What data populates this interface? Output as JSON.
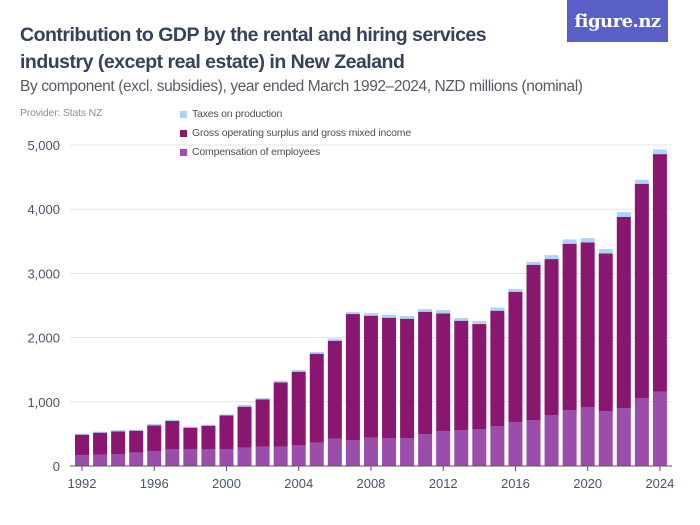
{
  "header": {
    "title": "Contribution to GDP by the rental and hiring services industry (except real estate) in New Zealand",
    "subtitle": "By component (excl. subsidies), year ended March 1992–2024, NZD millions (nominal)",
    "provider": "Provider: Stats NZ",
    "logo_text": "figure.nz",
    "logo_color": "#5a5fc8"
  },
  "chart_data": {
    "type": "bar",
    "stacked": true,
    "title": "Contribution to GDP by the rental and hiring services industry (except real estate) in New Zealand",
    "subtitle": "By component (excl. subsidies), year ended March 1992–2024, NZD millions (nominal)",
    "xlabel": "",
    "ylabel": "",
    "ylim": [
      0,
      5000
    ],
    "yticks": [
      "0",
      "1,000",
      "2,000",
      "3,000",
      "4,000",
      "5,000"
    ],
    "ytick_values": [
      0,
      1000,
      2000,
      3000,
      4000,
      5000
    ],
    "xticks": [
      "1992",
      "1996",
      "2000",
      "2004",
      "2008",
      "2012",
      "2016",
      "2020",
      "2024"
    ],
    "grid": true,
    "legend_position": "top",
    "categories": [
      1992,
      1993,
      1994,
      1995,
      1996,
      1997,
      1998,
      1999,
      2000,
      2001,
      2002,
      2003,
      2004,
      2005,
      2006,
      2007,
      2008,
      2009,
      2010,
      2011,
      2012,
      2013,
      2014,
      2015,
      2016,
      2017,
      2018,
      2019,
      2020,
      2021,
      2022,
      2023,
      2024
    ],
    "series": [
      {
        "name": "Compensation of employees",
        "color": "#9b4dab",
        "values": [
          171,
          176,
          187,
          208,
          234,
          265,
          265,
          265,
          265,
          285,
          301,
          301,
          327,
          363,
          426,
          405,
          441,
          436,
          436,
          498,
          545,
          560,
          576,
          623,
          685,
          711,
          789,
          872,
          919,
          856,
          903,
          1054,
          1157
        ]
      },
      {
        "name": "Gross operating surplus and gross mixed income",
        "color": "#89176f",
        "values": [
          317,
          343,
          353,
          342,
          399,
          436,
          332,
          363,
          524,
          639,
          737,
          1002,
          1142,
          1386,
          1525,
          1962,
          1900,
          1874,
          1858,
          1905,
          1832,
          1703,
          1635,
          1796,
          2029,
          2424,
          2434,
          2590,
          2563,
          2455,
          2979,
          3342,
          3701
        ]
      },
      {
        "name": "Taxes on production",
        "color": "#a9d6f5",
        "values": [
          15,
          16,
          20,
          16,
          21,
          20,
          15,
          16,
          15,
          26,
          21,
          26,
          26,
          26,
          32,
          31,
          41,
          46,
          42,
          41,
          52,
          41,
          47,
          51,
          42,
          46,
          62,
          67,
          68,
          68,
          73,
          62,
          73
        ]
      }
    ],
    "legend_order": [
      "Taxes on production",
      "Gross operating surplus and gross mixed income",
      "Compensation of employees"
    ]
  }
}
